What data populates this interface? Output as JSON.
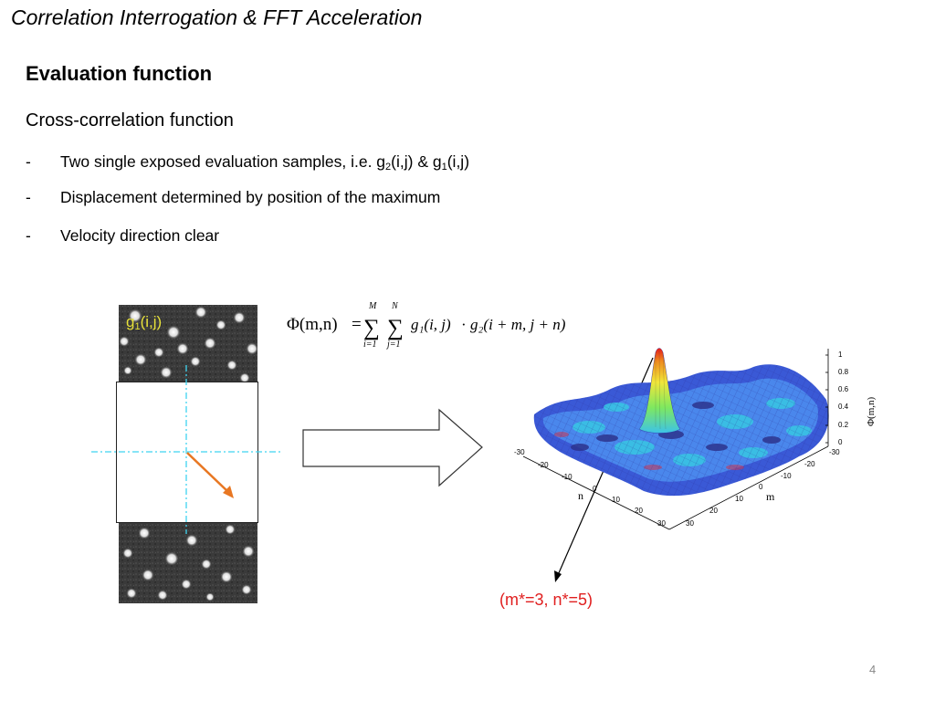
{
  "slide": {
    "title": "Correlation Interrogation & FFT Acceleration",
    "heading": "Evaluation function",
    "subheading": "Cross-correlation function",
    "number": "4"
  },
  "bullets": [
    {
      "dash": "-",
      "text_pre": "Two single exposed evaluation samples, i.e. g",
      "sub1": "2",
      "text_mid": "(i,j) & g",
      "sub2": "1",
      "text_post": "(i,j)"
    },
    {
      "dash": "-",
      "text": "Displacement determined by position of the maximum"
    },
    {
      "dash": "-",
      "text": "Velocity direction clear"
    }
  ],
  "image_label": {
    "prefix": "g",
    "sub": "1",
    "suffix": "(i,j)"
  },
  "formula": {
    "lhs": "Φ(m,n)",
    "equals": "=",
    "sum1_upper": "M",
    "sum1_lower": "i=1",
    "sum2_upper": "N",
    "sum2_lower": "j=1",
    "term1": "g₁(i, j)",
    "dot": "·",
    "term2": "g₂(i + m, j + n)"
  },
  "plot": {
    "zlabel": "Φ(m,n)",
    "x_axis_label": "n",
    "y_axis_label": "m",
    "n_ticks": [
      "-30",
      "-20",
      "-10",
      "0",
      "10",
      "20",
      "30"
    ],
    "m_ticks": [
      "-30",
      "-20",
      "-10",
      "0",
      "10",
      "20",
      "30"
    ],
    "z_ticks": [
      "0",
      "0.2",
      "0.4",
      "0.6",
      "0.8",
      "1"
    ],
    "peak": {
      "m": 3,
      "n": 5,
      "value": 1
    }
  },
  "result": "(m*=3, n*=5)",
  "colors": {
    "result": "#e01e1e",
    "g1_label": "#e7e13a",
    "arrow": "#e87722",
    "crosshair": "#3fd4f0"
  }
}
